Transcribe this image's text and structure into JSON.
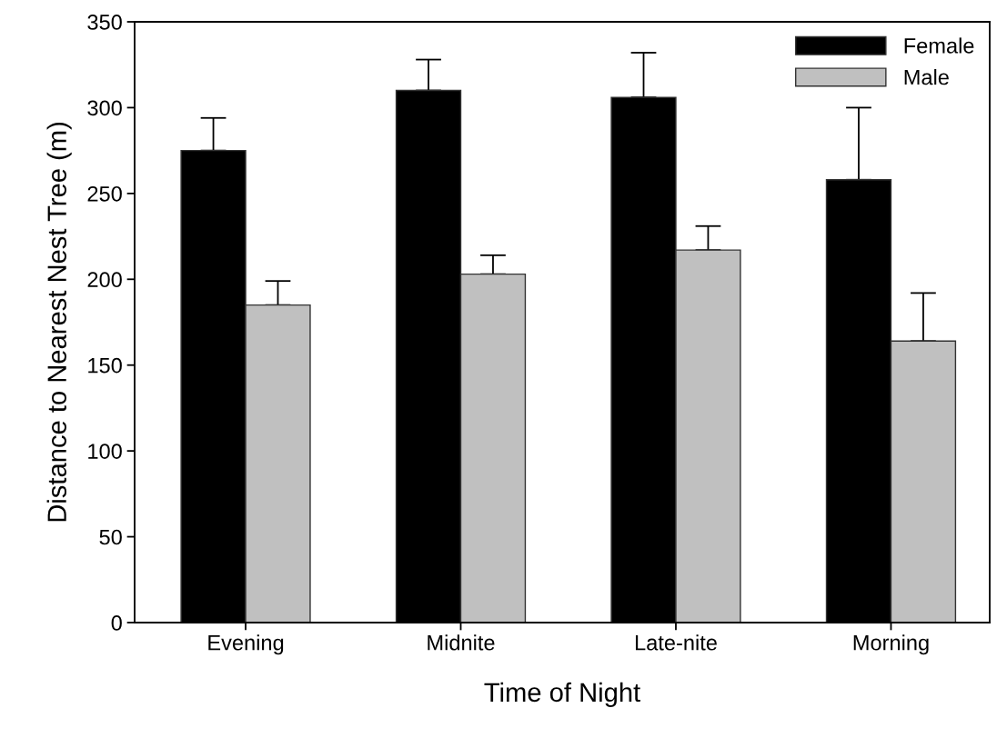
{
  "chart_data": {
    "type": "bar",
    "xlabel": "Time of Night",
    "ylabel": "Distance to Nearest Nest Tree (m)",
    "categories": [
      "Evening",
      "Midnite",
      "Late-nite",
      "Morning"
    ],
    "series": [
      {
        "name": "Female",
        "color": "#000000",
        "values": [
          275,
          310,
          306,
          258
        ],
        "errors": [
          [
            275,
            294
          ],
          [
            310,
            328
          ],
          [
            306,
            332
          ],
          [
            258,
            300
          ]
        ]
      },
      {
        "name": "Male",
        "color": "#c0c0c0",
        "values": [
          185,
          203,
          217,
          164
        ],
        "errors": [
          [
            185,
            199
          ],
          [
            203,
            214
          ],
          [
            217,
            231
          ],
          [
            164,
            192
          ]
        ]
      }
    ],
    "ylim": [
      0,
      350
    ],
    "yticks": [
      0,
      50,
      100,
      150,
      200,
      250,
      300,
      350
    ],
    "grid": false,
    "legend": "top right"
  }
}
